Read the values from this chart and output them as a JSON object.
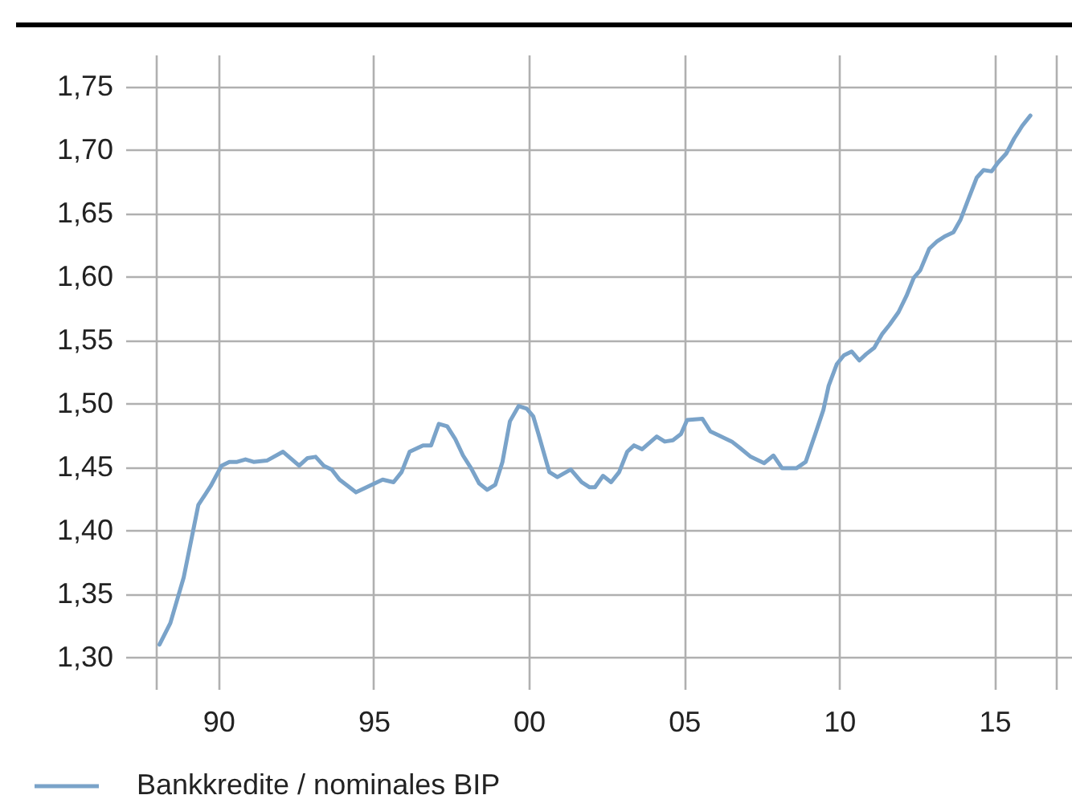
{
  "chart_data": {
    "type": "line",
    "x": [
      1988.1,
      1988.45,
      1988.88,
      1989.35,
      1989.75,
      1990.1,
      1990.35,
      1990.6,
      1990.87,
      1991.13,
      1991.56,
      1992.08,
      1992.6,
      1992.87,
      1993.13,
      1993.39,
      1993.65,
      1993.9,
      1994.43,
      1994.69,
      1995.03,
      1995.29,
      1995.64,
      1995.9,
      1996.16,
      1996.59,
      1996.85,
      1997.1,
      1997.37,
      1997.63,
      1997.88,
      1998.14,
      1998.4,
      1998.66,
      1998.92,
      1999.15,
      1999.39,
      1999.67,
      1999.93,
      2000.14,
      2000.31,
      2000.66,
      2000.92,
      2001.35,
      2001.7,
      2001.96,
      2002.13,
      2002.39,
      2002.65,
      2002.91,
      2003.17,
      2003.39,
      2003.65,
      2004.12,
      2004.38,
      2004.64,
      2004.9,
      2005.1,
      2005.59,
      2005.85,
      2006.11,
      2006.54,
      2006.8,
      2007.15,
      2007.58,
      2007.88,
      2008.16,
      2008.62,
      2008.92,
      2009.23,
      2009.49,
      2009.66,
      2009.92,
      2010.15,
      2010.4,
      2010.65,
      2010.87,
      2011.13,
      2011.39,
      2011.62,
      2011.91,
      2012.17,
      2012.4,
      2012.61,
      2012.9,
      2013.16,
      2013.42,
      2013.68,
      2013.91,
      2014.16,
      2014.43,
      2014.65,
      2014.91,
      2015.12,
      2015.38,
      2015.64,
      2015.9,
      2016.16
    ],
    "series": [
      {
        "name": "Bankkredite / nominales BIP",
        "color": "#7aa3c9",
        "values": [
          1.31,
          1.327,
          1.363,
          1.42,
          1.435,
          1.451,
          1.454,
          1.454,
          1.456,
          1.454,
          1.455,
          1.462,
          1.451,
          1.457,
          1.458,
          1.451,
          1.448,
          1.44,
          1.43,
          1.433,
          1.437,
          1.44,
          1.438,
          1.446,
          1.462,
          1.467,
          1.467,
          1.484,
          1.482,
          1.472,
          1.459,
          1.449,
          1.437,
          1.432,
          1.436,
          1.454,
          1.486,
          1.498,
          1.496,
          1.49,
          1.476,
          1.446,
          1.442,
          1.448,
          1.438,
          1.434,
          1.434,
          1.443,
          1.438,
          1.446,
          1.462,
          1.467,
          1.464,
          1.474,
          1.47,
          1.471,
          1.476,
          1.487,
          1.488,
          1.478,
          1.475,
          1.47,
          1.465,
          1.458,
          1.453,
          1.459,
          1.449,
          1.449,
          1.454,
          1.476,
          1.495,
          1.514,
          1.531,
          1.538,
          1.541,
          1.534,
          1.539,
          1.544,
          1.555,
          1.562,
          1.572,
          1.585,
          1.599,
          1.605,
          1.622,
          1.628,
          1.632,
          1.635,
          1.645,
          1.661,
          1.678,
          1.684,
          1.683,
          1.69,
          1.697,
          1.709,
          1.719,
          1.727
        ]
      }
    ],
    "xlim": [
      1987,
      2017.5
    ],
    "xticks": [
      {
        "value": 1988,
        "label": null
      },
      {
        "value": 1990,
        "label": "90"
      },
      {
        "value": 1995,
        "label": "95"
      },
      {
        "value": 2000,
        "label": "00"
      },
      {
        "value": 2005,
        "label": "05"
      },
      {
        "value": 2010,
        "label": "10"
      },
      {
        "value": 2015,
        "label": "15"
      },
      {
        "value": 2017,
        "label": null
      }
    ],
    "ylim": [
      1.275,
      1.775
    ],
    "yticks": [
      {
        "value": 1.3,
        "label": "1,30"
      },
      {
        "value": 1.35,
        "label": "1,35"
      },
      {
        "value": 1.4,
        "label": "1,40"
      },
      {
        "value": 1.45,
        "label": "1,45"
      },
      {
        "value": 1.5,
        "label": "1,50"
      },
      {
        "value": 1.55,
        "label": "1,55"
      },
      {
        "value": 1.6,
        "label": "1,60"
      },
      {
        "value": 1.65,
        "label": "1,65"
      },
      {
        "value": 1.7,
        "label": "1,70"
      },
      {
        "value": 1.75,
        "label": "1,75"
      }
    ],
    "grid": true,
    "legend": "bottom left",
    "line_style": "solid",
    "marker": "none"
  }
}
